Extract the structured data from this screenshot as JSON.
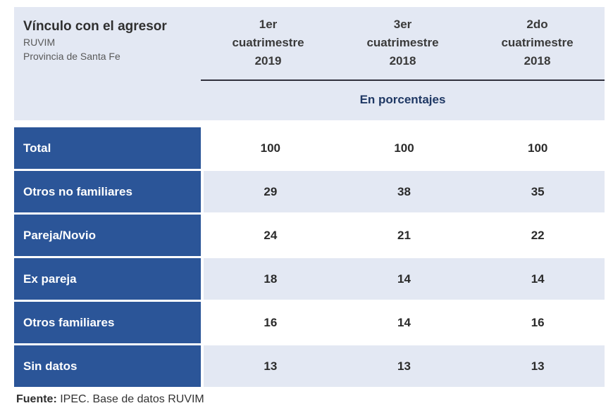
{
  "table": {
    "title": "Vínculo con el agresor",
    "subtitle1": "RUVIM",
    "subtitle2": "Provincia de Santa Fe",
    "columns": [
      {
        "line1": "1er",
        "line2": "cuatrimestre",
        "line3": "2019"
      },
      {
        "line1": "3er",
        "line2": "cuatrimestre",
        "line3": "2018"
      },
      {
        "line1": "2do",
        "line2": "cuatrimestre",
        "line3": "2018"
      }
    ],
    "units_label": "En porcentajes",
    "rows": [
      {
        "label": "Total",
        "values": [
          100,
          100,
          100
        ]
      },
      {
        "label": "Otros no familiares",
        "values": [
          29,
          38,
          35
        ]
      },
      {
        "label": "Pareja/Novio",
        "values": [
          24,
          21,
          22
        ]
      },
      {
        "label": "Ex pareja",
        "values": [
          18,
          14,
          14
        ]
      },
      {
        "label": "Otros familiares",
        "values": [
          16,
          14,
          16
        ]
      },
      {
        "label": "Sin datos",
        "values": [
          13,
          13,
          13
        ]
      }
    ],
    "source_label": "Fuente:",
    "source_text": " IPEC. Base de datos RUVIM"
  },
  "colors": {
    "row_label_blue": "#2b5598",
    "band_lavender": "#e3e8f3",
    "units_navy": "#1f3864",
    "header_text": "#3a3a3a",
    "rule_dark": "#30303c"
  },
  "chart_data": {
    "type": "table",
    "title": "Vínculo con el agresor — RUVIM — Provincia de Santa Fe",
    "units": "En porcentajes",
    "columns": [
      "1er cuatrimestre 2019",
      "3er cuatrimestre 2018",
      "2do cuatrimestre 2018"
    ],
    "categories": [
      "Total",
      "Otros no familiares",
      "Pareja/Novio",
      "Ex pareja",
      "Otros familiares",
      "Sin datos"
    ],
    "series": [
      {
        "name": "1er cuatrimestre 2019",
        "values": [
          100,
          29,
          24,
          18,
          16,
          13
        ]
      },
      {
        "name": "3er cuatrimestre 2018",
        "values": [
          100,
          38,
          21,
          14,
          14,
          13
        ]
      },
      {
        "name": "2do cuatrimestre 2018",
        "values": [
          100,
          35,
          22,
          14,
          16,
          13
        ]
      }
    ],
    "source": "Fuente: IPEC. Base de datos RUVIM"
  }
}
